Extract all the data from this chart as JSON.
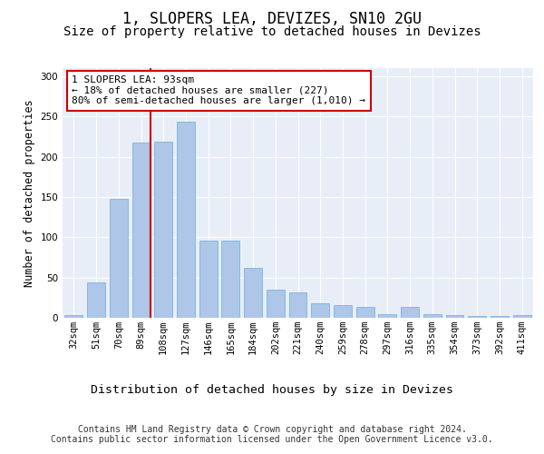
{
  "title1": "1, SLOPERS LEA, DEVIZES, SN10 2GU",
  "title2": "Size of property relative to detached houses in Devizes",
  "xlabel": "Distribution of detached houses by size in Devizes",
  "ylabel": "Number of detached properties",
  "categories": [
    "32sqm",
    "51sqm",
    "70sqm",
    "89sqm",
    "108sqm",
    "127sqm",
    "146sqm",
    "165sqm",
    "184sqm",
    "202sqm",
    "221sqm",
    "240sqm",
    "259sqm",
    "278sqm",
    "297sqm",
    "316sqm",
    "335sqm",
    "354sqm",
    "373sqm",
    "392sqm",
    "411sqm"
  ],
  "values": [
    3,
    44,
    148,
    218,
    219,
    243,
    96,
    96,
    62,
    35,
    32,
    18,
    16,
    14,
    4,
    14,
    4,
    3,
    2,
    2,
    3
  ],
  "bar_color": "#aec6e8",
  "bar_edge_color": "#6baed6",
  "bar_width": 0.8,
  "vline_x": 3.42,
  "vline_color": "#cc0000",
  "annotation_text": "1 SLOPERS LEA: 93sqm\n← 18% of detached houses are smaller (227)\n80% of semi-detached houses are larger (1,010) →",
  "annotation_box_color": "#ffffff",
  "annotation_box_edge": "#cc0000",
  "ylim": [
    0,
    310
  ],
  "yticks": [
    0,
    50,
    100,
    150,
    200,
    250,
    300
  ],
  "background_color": "#e8eef8",
  "footer_text": "Contains HM Land Registry data © Crown copyright and database right 2024.\nContains public sector information licensed under the Open Government Licence v3.0.",
  "title1_fontsize": 12,
  "title2_fontsize": 10,
  "xlabel_fontsize": 9.5,
  "ylabel_fontsize": 8.5,
  "tick_fontsize": 7.5,
  "footer_fontsize": 7,
  "annot_fontsize": 8
}
